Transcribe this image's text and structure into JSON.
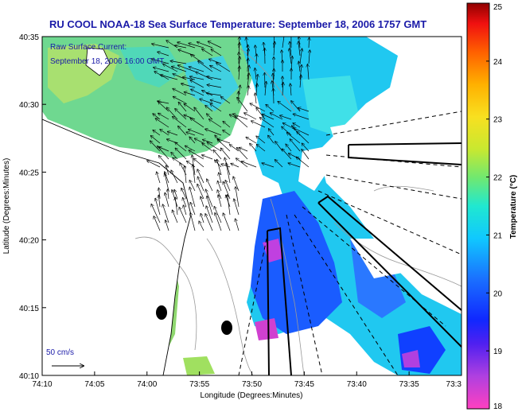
{
  "header": {
    "title": "RU COOL  NOAA-18  Sea Surface Temperature:  September 18, 2006 1757 GMT",
    "current_label": "Raw Surface Current:",
    "current_time": "September 18, 2006 16:00 GMT"
  },
  "axes": {
    "xlabel": "Longitude (Degrees:Minutes)",
    "ylabel": "Latitude (Degrees:Minutes)",
    "x_ticks": [
      "74:10",
      "74:05",
      "74:00",
      "73:55",
      "73:50",
      "73:45",
      "73:40",
      "73:35",
      "73:3"
    ],
    "y_ticks": [
      "40:35",
      "40:30",
      "40:25",
      "40:20",
      "40:15",
      "40:10"
    ]
  },
  "colorbar": {
    "label": "Temperature (°C)",
    "min": 18,
    "max": 25,
    "ticks": [
      "25",
      "24",
      "23",
      "22",
      "21",
      "20",
      "19",
      "18"
    ]
  },
  "scale_arrow": {
    "label": "50 cm/s"
  },
  "colors": {
    "title": "#1a1aa8",
    "land": "#ffffff",
    "coast": "#000000",
    "bathymetry": "#999999",
    "vectors": "#000000"
  }
}
